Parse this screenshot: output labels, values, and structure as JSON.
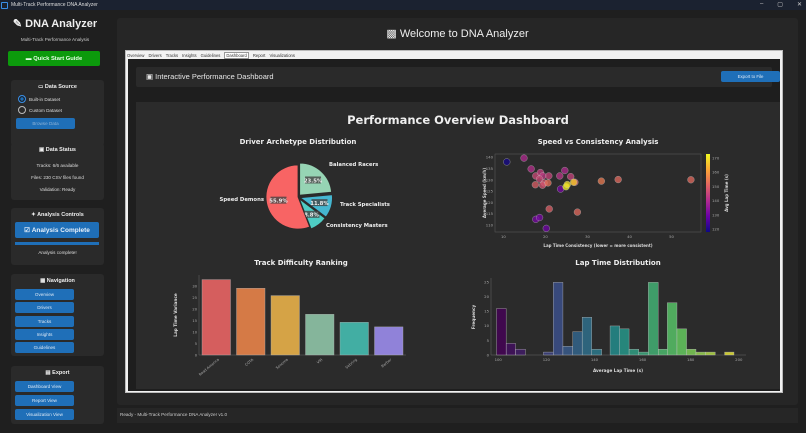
{
  "window": {
    "title": "Multi-Track Performance DNA Analyzer",
    "controls": [
      "–",
      "▢",
      "✕"
    ]
  },
  "sidebar": {
    "app_title": "DNA Analyzer",
    "subtitle": "Multi-Track Performance Analysis",
    "quick_start": "Quick Start Guide",
    "data_source": {
      "title": "Data Source",
      "options": [
        {
          "label": "Built-in Dataset",
          "selected": true
        },
        {
          "label": "Custom Dataset",
          "selected": false
        }
      ],
      "browse": "Browse Data"
    },
    "data_status": {
      "title": "Data Status",
      "tracks": "Tracks: 6/6 available",
      "files": "Files: 230 CSV files found",
      "validation": "Validation: Ready"
    },
    "analysis": {
      "title": "Analysis Controls",
      "button": "Analysis Complete",
      "progress": 100,
      "status": "Analysis complete!"
    },
    "navigation": {
      "title": "Navigation",
      "items": [
        "Overview",
        "Drivers",
        "Tracks",
        "Insights",
        "Guidelines"
      ]
    },
    "export": {
      "title": "Export",
      "items": [
        "Dashboard View",
        "Report View",
        "Visualization View"
      ]
    }
  },
  "header": {
    "title": "Welcome to DNA Analyzer"
  },
  "tabs": [
    {
      "label": "Overview"
    },
    {
      "label": "Drivers"
    },
    {
      "label": "Tracks"
    },
    {
      "label": "Insights"
    },
    {
      "label": "Guidelines"
    },
    {
      "label": "Dashboard",
      "active": true
    },
    {
      "label": "Report"
    },
    {
      "label": "Visualizations"
    }
  ],
  "dashboard": {
    "title": "Interactive Performance Dashboard",
    "export": "Export to File",
    "figure_title": "Performance Overview Dashboard"
  },
  "status": "Ready - Multi-Track Performance DNA Analyzer v1.0",
  "chart_data": [
    {
      "type": "pie",
      "title": "Driver Archetype Distribution",
      "labels": [
        "Balanced Racers",
        "Track Specialists",
        "Consistency Masters",
        "Speed Demons"
      ],
      "values": [
        23.5,
        11.8,
        8.8,
        55.9
      ],
      "value_labels": [
        "23.5%",
        "11.8%",
        "8.8%",
        "55.9%"
      ],
      "colors": [
        "#96d4b4",
        "#45b7d1",
        "#4ecdc4",
        "#f86464"
      ]
    },
    {
      "type": "scatter",
      "title": "Speed vs Consistency Analysis",
      "xlabel": "Lap Time Consistency (lower = more consistent)",
      "ylabel": "Average Speed (km/h)",
      "colorbar_label": "Avg Lap Time (s)",
      "xlim": [
        8,
        57
      ],
      "ylim": [
        107,
        141.5
      ],
      "clim": [
        118,
        173
      ],
      "xticks": [
        10,
        20,
        30,
        40,
        50
      ],
      "yticks": [
        110,
        115,
        120,
        125,
        130,
        135,
        140
      ],
      "cticks": [
        120,
        130,
        140,
        150,
        160,
        170
      ],
      "points": [
        [
          10.8,
          138,
          119
        ],
        [
          14.9,
          139.7,
          140
        ],
        [
          16.6,
          134.9,
          141
        ],
        [
          17.7,
          131.8,
          146
        ],
        [
          17.6,
          127.9,
          150
        ],
        [
          18.8,
          133.3,
          144
        ],
        [
          19.4,
          131.8,
          143
        ],
        [
          18.6,
          130.4,
          146
        ],
        [
          19.7,
          128.7,
          148
        ],
        [
          19.3,
          127.7,
          148
        ],
        [
          20.8,
          131.8,
          145
        ],
        [
          20.6,
          128.7,
          153
        ],
        [
          24.6,
          134.2,
          140
        ],
        [
          23.4,
          131.8,
          142
        ],
        [
          26,
          131.5,
          145
        ],
        [
          27,
          129,
          150
        ],
        [
          23.6,
          126,
          131
        ],
        [
          24.9,
          127,
          172
        ],
        [
          25.2,
          128,
          170
        ],
        [
          26.7,
          129,
          167
        ],
        [
          33.3,
          129.5,
          155
        ],
        [
          37.3,
          130.2,
          152
        ],
        [
          54.6,
          130.1,
          152
        ],
        [
          20.9,
          117.2,
          150
        ],
        [
          27.6,
          115.8,
          152
        ],
        [
          17.7,
          112.6,
          131
        ],
        [
          18.6,
          113.4,
          131
        ],
        [
          20.2,
          108.6,
          130
        ]
      ]
    },
    {
      "type": "bar",
      "title": "Track Difficulty Ranking",
      "ylabel": "Lap Time Variance",
      "categories": [
        "Road America",
        "COTA",
        "Sonoma",
        "VIR",
        "Sebring",
        "Barber"
      ],
      "values": [
        33,
        29.2,
        26,
        17.8,
        14.3,
        12.3
      ],
      "ylim": [
        0,
        35
      ],
      "yticks": [
        0,
        5,
        10,
        15,
        20,
        25,
        30
      ],
      "colors": [
        "#e86464",
        "#e8834a",
        "#e8b04a",
        "#8fc4a8",
        "#45bdb0",
        "#9c8cec"
      ]
    },
    {
      "type": "bar",
      "title": "Lap Time Distribution",
      "xlabel": "Average Lap Time (s)",
      "ylabel": "Frequency",
      "xlim": [
        97,
        203
      ],
      "ylim": [
        0,
        26.5
      ],
      "xticks": [
        100,
        120,
        140,
        160,
        180,
        200
      ],
      "yticks": [
        0,
        5,
        10,
        15,
        20,
        25
      ],
      "bins": [
        [
          99.3,
          103.3,
          16
        ],
        [
          103.3,
          107.2,
          4
        ],
        [
          107.2,
          111.3,
          2
        ],
        [
          118.8,
          122.9,
          1
        ],
        [
          122.9,
          126.9,
          25
        ],
        [
          126.9,
          131,
          3
        ],
        [
          131,
          134.9,
          8
        ],
        [
          134.9,
          138.9,
          13
        ],
        [
          138.9,
          143,
          2
        ],
        [
          146.5,
          150.5,
          10
        ],
        [
          150.5,
          154.4,
          9
        ],
        [
          154.4,
          158.4,
          2
        ],
        [
          158.4,
          162.4,
          1
        ],
        [
          162.4,
          166.5,
          25
        ],
        [
          166.5,
          170.3,
          2
        ],
        [
          170.3,
          174.3,
          18
        ],
        [
          174.3,
          178.3,
          9
        ],
        [
          178.3,
          182.2,
          2
        ],
        [
          182.2,
          186.2,
          1
        ],
        [
          186.2,
          190.2,
          1
        ],
        [
          194.1,
          198,
          1
        ]
      ]
    }
  ]
}
